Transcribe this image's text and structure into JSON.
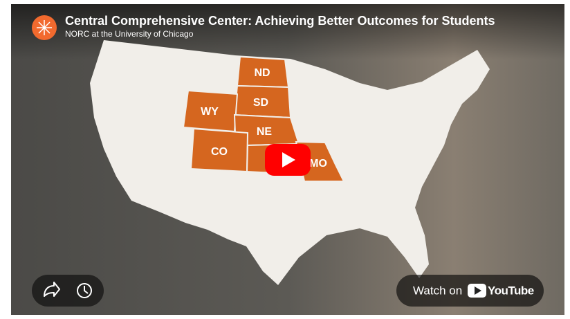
{
  "header": {
    "title": "Central Comprehensive Center: Achieving Better Outcomes for Students",
    "channel": "NORC at the University of Chicago"
  },
  "map": {
    "states": [
      "ND",
      "SD",
      "WY",
      "NE",
      "CO",
      "MO"
    ]
  },
  "watch": {
    "label": "Watch on",
    "brand": "YouTube"
  }
}
